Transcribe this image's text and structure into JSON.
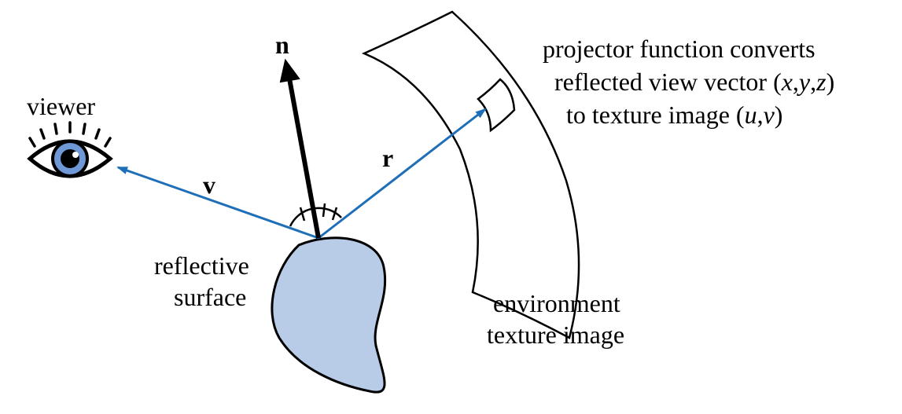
{
  "labels": {
    "viewer": "viewer",
    "n": "n",
    "v": "v",
    "r": "r",
    "reflective": "reflective",
    "surface": "surface",
    "environment": "environment",
    "texture_image": "texture image",
    "projector_line1": "projector function converts",
    "projector_line2_prefix": "reflected view vector (",
    "projector_line2_x": "x",
    "projector_line2_y": "y",
    "projector_line2_z": "z",
    "projector_line2_suffix": ")",
    "projector_line3_prefix": "to texture image (",
    "projector_line3_u": "u",
    "projector_line3_v": "v",
    "projector_line3_suffix": ")",
    "comma": ","
  },
  "colors": {
    "vector_blue": "#1f6fb8",
    "surface_fill": "#b8cce8",
    "iris": "#6f98d6",
    "ink": "#000000"
  }
}
